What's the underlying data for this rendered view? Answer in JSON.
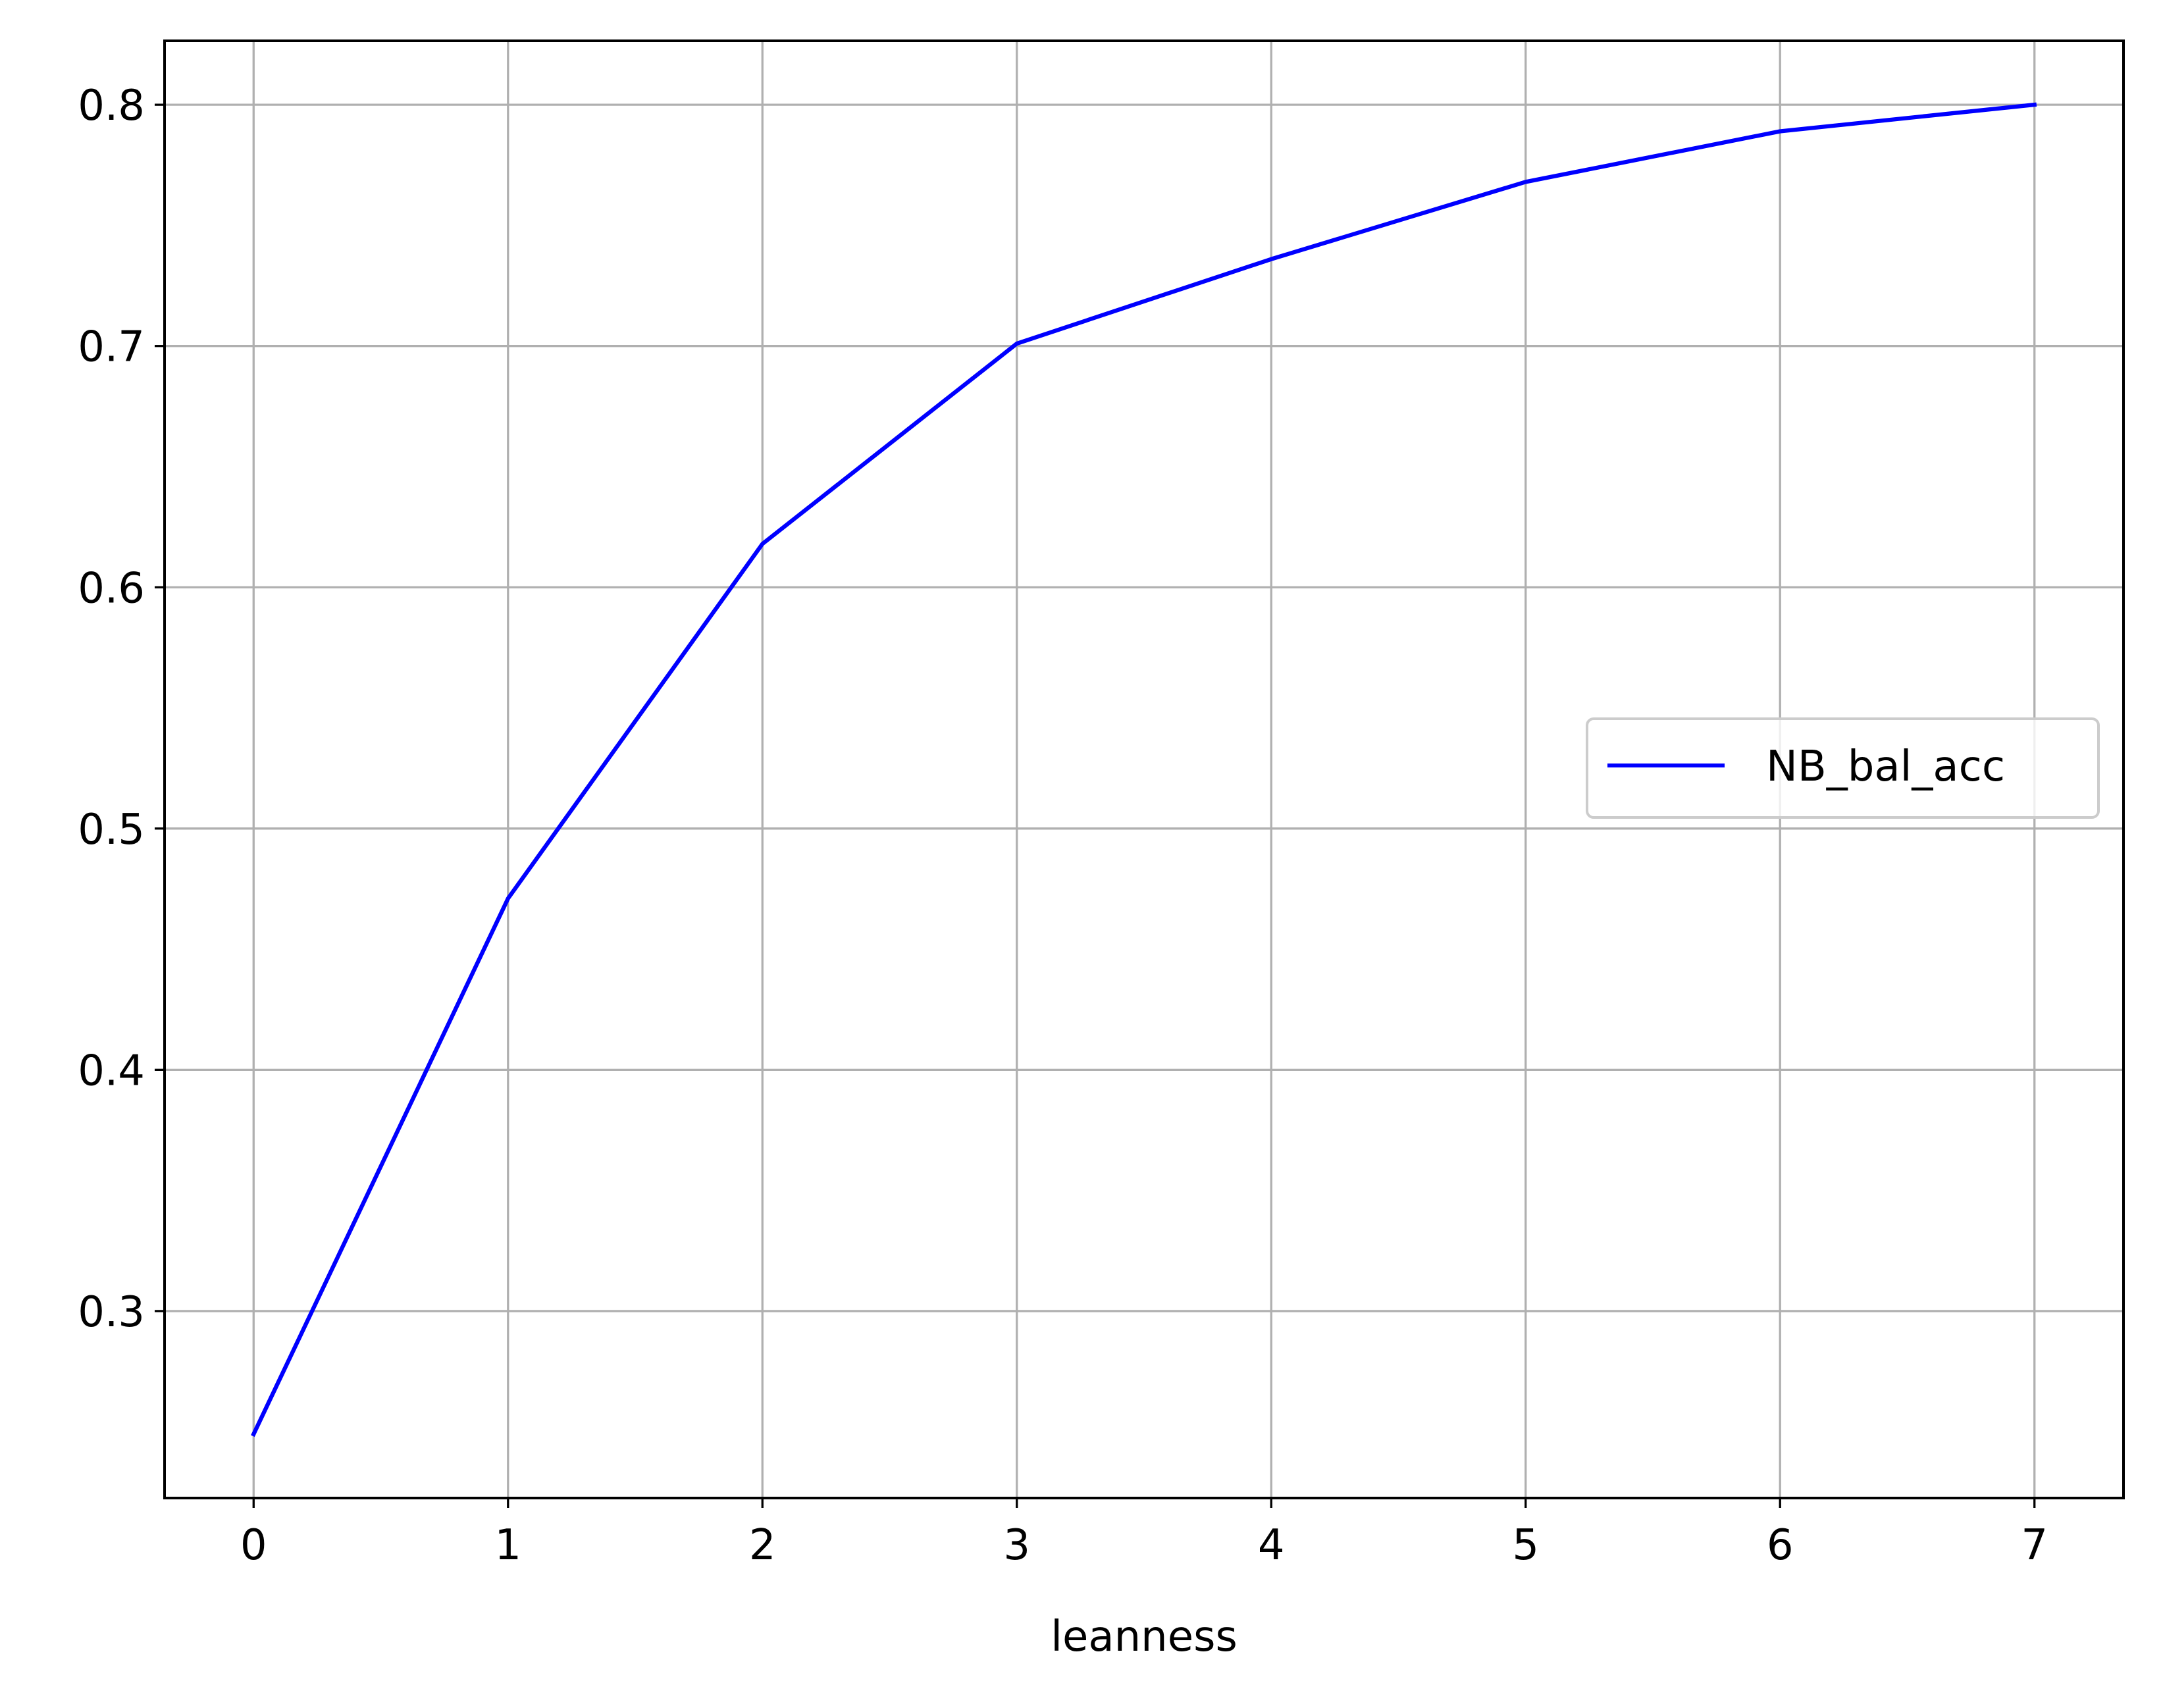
{
  "chart_data": {
    "type": "line",
    "title": "",
    "xlabel": "leanness",
    "ylabel": "",
    "x": [
      0,
      1,
      2,
      3,
      4,
      5,
      6,
      7
    ],
    "series": [
      {
        "name": "NB_bal_acc",
        "color": "#0000ff",
        "values": [
          0.249,
          0.471,
          0.618,
          0.701,
          0.736,
          0.768,
          0.789,
          0.8
        ]
      }
    ],
    "xlim": [
      -0.35,
      7.35
    ],
    "ylim": [
      0.2225,
      0.8265
    ],
    "xticks": [
      0,
      1,
      2,
      3,
      4,
      5,
      6,
      7
    ],
    "xtick_labels": [
      "0",
      "1",
      "2",
      "3",
      "4",
      "5",
      "6",
      "7"
    ],
    "yticks": [
      0.3,
      0.4,
      0.5,
      0.6,
      0.7,
      0.8
    ],
    "ytick_labels": [
      "0.3",
      "0.4",
      "0.5",
      "0.6",
      "0.7",
      "0.8"
    ],
    "grid": true,
    "legend_position": "center-right"
  }
}
